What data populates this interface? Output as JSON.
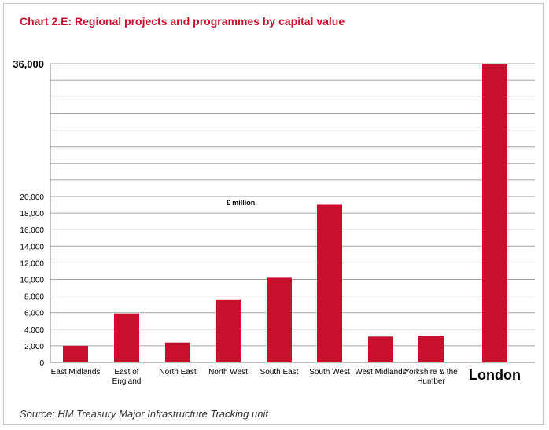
{
  "title": "Chart 2.E: Regional projects and programmes by capital value",
  "source": "Source:  HM Treasury Major Infrastructure Tracking unit",
  "colors": {
    "bar": "#c8102e",
    "title": "#c8102e",
    "grid": "#a6a6a6"
  },
  "chart_data": {
    "type": "bar",
    "title": "Chart 2.E: Regional projects and programmes by capital value",
    "unit_label": "£ million",
    "categories": [
      "East Midlands",
      "East of England",
      "North East",
      "North West",
      "South East",
      "South West",
      "West Midlands",
      "Yorkshire & the Humber",
      "London"
    ],
    "values": [
      2000,
      5900,
      2400,
      7600,
      10200,
      19000,
      3100,
      3200,
      36000
    ],
    "yticks": [
      "0",
      "2,000",
      "4,000",
      "6,000",
      "8,000",
      "10,000",
      "12,000",
      "14,000",
      "16,000",
      "18,000",
      "20,000",
      "36,000"
    ],
    "ylim": [
      0,
      36000
    ],
    "axis_break": true,
    "grid": true,
    "legend": "none"
  }
}
